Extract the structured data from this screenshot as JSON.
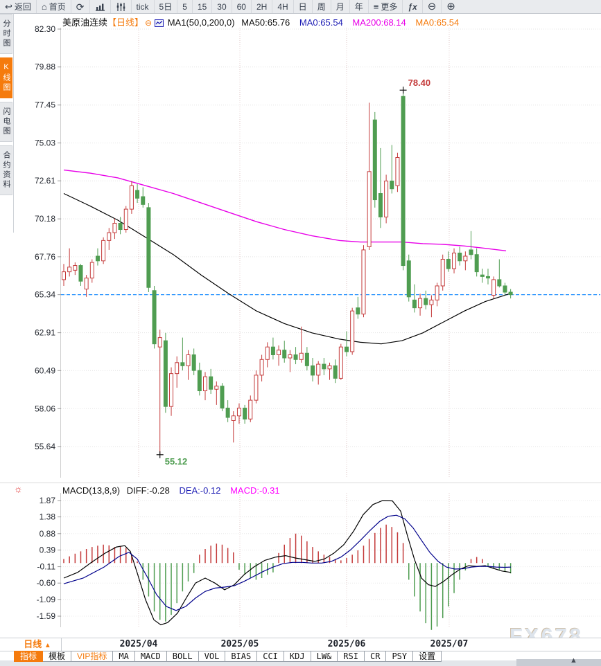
{
  "top_toolbar": {
    "items": [
      {
        "label": "返回",
        "icon": "back-arrow-icon",
        "glyph": "↩"
      },
      {
        "label": "首页",
        "icon": "home-icon",
        "glyph": "⌂"
      },
      {
        "label": "",
        "icon": "refresh-icon",
        "glyph": "⟳"
      },
      {
        "label": "",
        "icon": "bar-chart-icon",
        "glyph": ""
      },
      {
        "label": "",
        "icon": "candlestick-icon",
        "glyph": ""
      },
      {
        "label": "tick"
      },
      {
        "label": "5日"
      },
      {
        "label": "5"
      },
      {
        "label": "15"
      },
      {
        "label": "30"
      },
      {
        "label": "60"
      },
      {
        "label": "2H"
      },
      {
        "label": "4H"
      },
      {
        "label": "日"
      },
      {
        "label": "周"
      },
      {
        "label": "月"
      },
      {
        "label": "年"
      },
      {
        "label": "更多",
        "icon": "menu-icon",
        "glyph": "≡"
      },
      {
        "label": "ƒx"
      },
      {
        "label": "",
        "icon": "zoom-out-icon",
        "glyph": "⊖"
      },
      {
        "label": "",
        "icon": "zoom-in-icon",
        "glyph": "⊕"
      }
    ]
  },
  "sidebar": {
    "items": [
      {
        "label": "分时图",
        "active": false
      },
      {
        "label": "K线图",
        "active": true
      },
      {
        "label": "闪电图",
        "active": false
      },
      {
        "label": "合约资料",
        "active": false
      }
    ]
  },
  "price_header": {
    "symbol": "美原油连续",
    "period": "【日线】",
    "collapse_glyph": "⊖",
    "ma_settings": "MA1(50,0,200,0)",
    "ma50": "MA50:65.76",
    "ma0_blue": "MA0:65.54",
    "ma200": "MA200:68.14",
    "ma0_orange": "MA0:65.54"
  },
  "macd_header": {
    "title": "MACD(13,8,9)",
    "diff": "DIFF:-0.28",
    "dea": "DEA:-0.12",
    "macd": "MACD:-0.31"
  },
  "axis_row": {
    "period_label": "日线",
    "period_arrow": "▲",
    "months": [
      "2025/04",
      "2025/05",
      "2025/06",
      "2025/07"
    ]
  },
  "bottom_toolbar": {
    "items": [
      "指标",
      "模板",
      "VIP指标",
      "MA",
      "MACD",
      "BOLL",
      "VOL",
      "BIAS",
      "CCI",
      "KDJ",
      "LW&",
      "RSI",
      "CR",
      "PSY",
      "设置"
    ]
  },
  "watermark": "FX678",
  "colors": {
    "accent_orange": "#f57b0d",
    "up_red": "#c43a3a",
    "down_green": "#4f9d51",
    "ma50_black": "#000000",
    "ma200_magenta": "#e800e8",
    "diff_black": "#000000",
    "dea_navy": "#00008b",
    "last_price_blue": "#1e8fff",
    "high_label_red": "#c43a3a",
    "low_label_green": "#4f9d51"
  },
  "chart_data": {
    "type": "candlestick",
    "title": "美原油连续 日线 (US Crude Oil Continuous, daily)",
    "price_axis": {
      "ticks": [
        "82.30",
        "79.88",
        "77.45",
        "75.03",
        "72.61",
        "70.18",
        "67.76",
        "65.34",
        "62.91",
        "60.49",
        "58.06",
        "55.64"
      ],
      "last_price": 65.34
    },
    "x_axis": {
      "months": [
        "2025/04",
        "2025/05",
        "2025/06",
        "2025/07"
      ]
    },
    "annotations": [
      {
        "text": "78.40",
        "candle": 60,
        "field": "high",
        "color": "#c43a3a"
      },
      {
        "text": "55.12",
        "candle": 17,
        "field": "low",
        "color": "#4f9d51"
      }
    ],
    "candles": [
      [
        66.3,
        67.3,
        65.9,
        66.8
      ],
      [
        66.8,
        68.3,
        66.5,
        67.1
      ],
      [
        66.9,
        67.4,
        66.6,
        67.2
      ],
      [
        67.2,
        67.3,
        65.9,
        66.2
      ],
      [
        65.7,
        66.6,
        65.2,
        66.4
      ],
      [
        66.4,
        67.6,
        66.1,
        67.4
      ],
      [
        67.8,
        68.3,
        67.2,
        67.5
      ],
      [
        67.5,
        69.0,
        67.3,
        68.8
      ],
      [
        68.8,
        69.6,
        68.2,
        69.3
      ],
      [
        69.3,
        70.2,
        68.9,
        69.9
      ],
      [
        69.9,
        70.3,
        69.2,
        69.5
      ],
      [
        69.5,
        71.0,
        69.3,
        70.8
      ],
      [
        70.8,
        72.6,
        70.5,
        72.3
      ],
      [
        72.0,
        72.4,
        71.2,
        71.5
      ],
      [
        71.6,
        72.2,
        70.9,
        71.1
      ],
      [
        70.9,
        71.2,
        65.5,
        65.8
      ],
      [
        65.6,
        65.9,
        61.9,
        62.2
      ],
      [
        62.0,
        63.1,
        55.12,
        62.6
      ],
      [
        62.4,
        62.9,
        57.8,
        58.2
      ],
      [
        58.2,
        60.7,
        57.6,
        60.3
      ],
      [
        60.3,
        61.4,
        59.4,
        61.0
      ],
      [
        61.0,
        62.6,
        60.5,
        60.8
      ],
      [
        60.8,
        61.8,
        59.9,
        61.5
      ],
      [
        61.5,
        61.9,
        60.2,
        60.5
      ],
      [
        60.5,
        61.0,
        58.9,
        59.2
      ],
      [
        59.2,
        60.4,
        58.6,
        60.1
      ],
      [
        60.1,
        60.6,
        59.0,
        59.3
      ],
      [
        59.3,
        59.8,
        58.3,
        59.5
      ],
      [
        59.5,
        59.7,
        57.9,
        58.1
      ],
      [
        58.1,
        58.6,
        57.2,
        57.5
      ],
      [
        57.3,
        57.9,
        55.9,
        57.6
      ],
      [
        57.6,
        58.4,
        57.1,
        58.1
      ],
      [
        58.1,
        58.3,
        57.1,
        57.4
      ],
      [
        57.4,
        58.9,
        57.2,
        58.6
      ],
      [
        58.6,
        60.5,
        58.4,
        60.2
      ],
      [
        60.2,
        61.5,
        59.8,
        61.2
      ],
      [
        61.2,
        62.3,
        60.7,
        62.0
      ],
      [
        62.0,
        62.6,
        61.2,
        61.5
      ],
      [
        61.5,
        62.1,
        60.8,
        61.8
      ],
      [
        61.8,
        62.4,
        61.0,
        61.3
      ],
      [
        61.3,
        61.8,
        60.4,
        61.5
      ],
      [
        61.5,
        62.0,
        60.9,
        61.2
      ],
      [
        61.2,
        63.3,
        61.0,
        61.6
      ],
      [
        61.6,
        62.0,
        60.5,
        60.8
      ],
      [
        60.8,
        61.3,
        59.8,
        60.2
      ],
      [
        60.2,
        61.1,
        59.6,
        60.9
      ],
      [
        60.9,
        61.3,
        60.2,
        60.6
      ],
      [
        60.6,
        61.0,
        59.9,
        60.8
      ],
      [
        60.8,
        61.2,
        59.7,
        60.0
      ],
      [
        60.0,
        62.2,
        59.9,
        62.0
      ],
      [
        62.0,
        63.0,
        61.4,
        61.7
      ],
      [
        61.7,
        64.5,
        61.5,
        64.3
      ],
      [
        64.5,
        65.2,
        63.8,
        64.1
      ],
      [
        64.1,
        68.5,
        63.9,
        68.2
      ],
      [
        68.4,
        77.6,
        68.2,
        73.2
      ],
      [
        76.5,
        77.0,
        70.9,
        71.4
      ],
      [
        71.8,
        74.7,
        69.6,
        70.3
      ],
      [
        70.3,
        73.0,
        69.9,
        72.6
      ],
      [
        72.6,
        74.9,
        71.8,
        72.1
      ],
      [
        72.3,
        74.4,
        71.9,
        74.1
      ],
      [
        78.0,
        78.4,
        66.9,
        67.2
      ],
      [
        67.5,
        67.9,
        64.9,
        65.2
      ],
      [
        65.0,
        66.0,
        64.2,
        64.5
      ],
      [
        64.5,
        65.4,
        64.0,
        65.1
      ],
      [
        65.1,
        65.6,
        64.4,
        64.7
      ],
      [
        64.7,
        65.3,
        63.9,
        65.0
      ],
      [
        65.0,
        66.1,
        64.6,
        65.9
      ],
      [
        65.9,
        67.9,
        65.6,
        67.6
      ],
      [
        67.6,
        68.1,
        66.8,
        67.0
      ],
      [
        67.0,
        68.3,
        66.7,
        68.0
      ],
      [
        68.0,
        68.4,
        67.2,
        67.5
      ],
      [
        67.5,
        68.1,
        66.9,
        67.8
      ],
      [
        68.2,
        69.4,
        67.6,
        67.9
      ],
      [
        67.9,
        68.3,
        66.5,
        66.8
      ],
      [
        66.6,
        67.0,
        66.1,
        66.5
      ],
      [
        66.5,
        67.0,
        66.0,
        66.4
      ],
      [
        65.3,
        66.5,
        65.1,
        66.3
      ],
      [
        66.3,
        67.6,
        65.8,
        65.9
      ],
      [
        65.9,
        66.1,
        65.3,
        65.5
      ],
      [
        65.5,
        65.7,
        65.1,
        65.34
      ]
    ],
    "ma200": [
      [
        92,
        73.3
      ],
      [
        130,
        73.1
      ],
      [
        170,
        72.8
      ],
      [
        210,
        72.3
      ],
      [
        250,
        71.8
      ],
      [
        290,
        71.2
      ],
      [
        330,
        70.6
      ],
      [
        370,
        70.0
      ],
      [
        410,
        69.5
      ],
      [
        450,
        69.1
      ],
      [
        490,
        68.8
      ],
      [
        520,
        68.7
      ],
      [
        550,
        68.7
      ],
      [
        580,
        68.7
      ],
      [
        610,
        68.6
      ],
      [
        640,
        68.55
      ],
      [
        670,
        68.45
      ],
      [
        700,
        68.3
      ],
      [
        730,
        68.14
      ]
    ],
    "ma50": [
      [
        92,
        71.8
      ],
      [
        130,
        71.0
      ],
      [
        170,
        70.1
      ],
      [
        210,
        69.0
      ],
      [
        250,
        67.9
      ],
      [
        290,
        66.6
      ],
      [
        330,
        65.4
      ],
      [
        370,
        64.3
      ],
      [
        410,
        63.5
      ],
      [
        450,
        62.9
      ],
      [
        490,
        62.5
      ],
      [
        520,
        62.3
      ],
      [
        550,
        62.2
      ],
      [
        580,
        62.4
      ],
      [
        610,
        62.9
      ],
      [
        640,
        63.6
      ],
      [
        670,
        64.3
      ],
      [
        700,
        64.9
      ],
      [
        735,
        65.4
      ]
    ],
    "macd": {
      "ticks": [
        "1.87",
        "1.38",
        "0.88",
        "0.39",
        "-0.11",
        "-0.60",
        "-1.09",
        "-1.59"
      ],
      "hist": [
        0.12,
        0.2,
        0.28,
        0.35,
        0.42,
        0.48,
        0.52,
        0.55,
        0.53,
        0.48,
        0.5,
        0.45,
        0.25,
        0.05,
        -0.5,
        -1.0,
        -1.45,
        -1.7,
        -1.75,
        -1.55,
        -1.2,
        -0.85,
        -0.55,
        -0.3,
        0.25,
        0.42,
        0.52,
        0.58,
        0.55,
        0.45,
        0.32,
        -0.2,
        -0.35,
        -0.45,
        -0.5,
        -0.45,
        -0.35,
        -0.28,
        0.3,
        0.55,
        0.75,
        0.88,
        0.82,
        0.65,
        0.48,
        0.35,
        0.25,
        0.18,
        0.12,
        0.08,
        0.15,
        0.25,
        0.38,
        0.52,
        0.72,
        0.9,
        1.05,
        1.15,
        1.08,
        0.92,
        0.6,
        -0.5,
        -1.0,
        -1.45,
        -1.8,
        -2.0,
        -1.9,
        -1.65,
        -1.3,
        -0.9,
        -0.5,
        -0.22,
        0.12,
        0.18,
        0.12,
        -0.12,
        -0.16,
        -0.2,
        -0.26,
        -0.31
      ],
      "diff": [
        [
          92,
          -0.45
        ],
        [
          112,
          -0.28
        ],
        [
          132,
          0.02
        ],
        [
          152,
          0.3
        ],
        [
          168,
          0.48
        ],
        [
          180,
          0.52
        ],
        [
          188,
          0.35
        ],
        [
          198,
          -0.3
        ],
        [
          210,
          -1.1
        ],
        [
          222,
          -1.7
        ],
        [
          232,
          -1.85
        ],
        [
          242,
          -1.78
        ],
        [
          256,
          -1.5
        ],
        [
          270,
          -1.0
        ],
        [
          282,
          -0.6
        ],
        [
          296,
          -0.45
        ],
        [
          310,
          -0.6
        ],
        [
          324,
          -0.8
        ],
        [
          338,
          -0.65
        ],
        [
          352,
          -0.35
        ],
        [
          366,
          -0.12
        ],
        [
          382,
          0.08
        ],
        [
          398,
          0.18
        ],
        [
          412,
          0.22
        ],
        [
          426,
          0.15
        ],
        [
          440,
          0.1
        ],
        [
          454,
          0.05
        ],
        [
          468,
          0.12
        ],
        [
          482,
          0.3
        ],
        [
          496,
          0.55
        ],
        [
          510,
          0.95
        ],
        [
          524,
          1.45
        ],
        [
          538,
          1.75
        ],
        [
          552,
          1.87
        ],
        [
          566,
          1.86
        ],
        [
          578,
          1.55
        ],
        [
          588,
          0.8
        ],
        [
          598,
          0.1
        ],
        [
          608,
          -0.45
        ],
        [
          618,
          -0.65
        ],
        [
          628,
          -0.7
        ],
        [
          640,
          -0.55
        ],
        [
          652,
          -0.35
        ],
        [
          664,
          -0.18
        ],
        [
          676,
          -0.08
        ],
        [
          688,
          -0.1
        ],
        [
          700,
          -0.08
        ],
        [
          712,
          -0.16
        ],
        [
          724,
          -0.24
        ],
        [
          737,
          -0.28
        ]
      ],
      "dea": [
        [
          92,
          -0.62
        ],
        [
          120,
          -0.45
        ],
        [
          150,
          -0.12
        ],
        [
          172,
          0.2
        ],
        [
          186,
          0.32
        ],
        [
          198,
          0.12
        ],
        [
          212,
          -0.4
        ],
        [
          226,
          -0.95
        ],
        [
          240,
          -1.3
        ],
        [
          254,
          -1.42
        ],
        [
          268,
          -1.3
        ],
        [
          282,
          -1.05
        ],
        [
          296,
          -0.85
        ],
        [
          310,
          -0.75
        ],
        [
          324,
          -0.72
        ],
        [
          338,
          -0.68
        ],
        [
          352,
          -0.55
        ],
        [
          366,
          -0.4
        ],
        [
          380,
          -0.25
        ],
        [
          394,
          -0.12
        ],
        [
          408,
          -0.02
        ],
        [
          422,
          0.02
        ],
        [
          436,
          0.02
        ],
        [
          450,
          0.0
        ],
        [
          464,
          0.0
        ],
        [
          478,
          0.05
        ],
        [
          492,
          0.18
        ],
        [
          506,
          0.4
        ],
        [
          520,
          0.68
        ],
        [
          534,
          0.98
        ],
        [
          548,
          1.25
        ],
        [
          560,
          1.4
        ],
        [
          572,
          1.43
        ],
        [
          584,
          1.32
        ],
        [
          596,
          1.05
        ],
        [
          608,
          0.68
        ],
        [
          620,
          0.32
        ],
        [
          632,
          0.05
        ],
        [
          644,
          -0.12
        ],
        [
          656,
          -0.18
        ],
        [
          668,
          -0.17
        ],
        [
          680,
          -0.12
        ],
        [
          692,
          -0.1
        ],
        [
          704,
          -0.1
        ],
        [
          716,
          -0.12
        ],
        [
          728,
          -0.13
        ],
        [
          737,
          -0.12
        ]
      ]
    }
  }
}
